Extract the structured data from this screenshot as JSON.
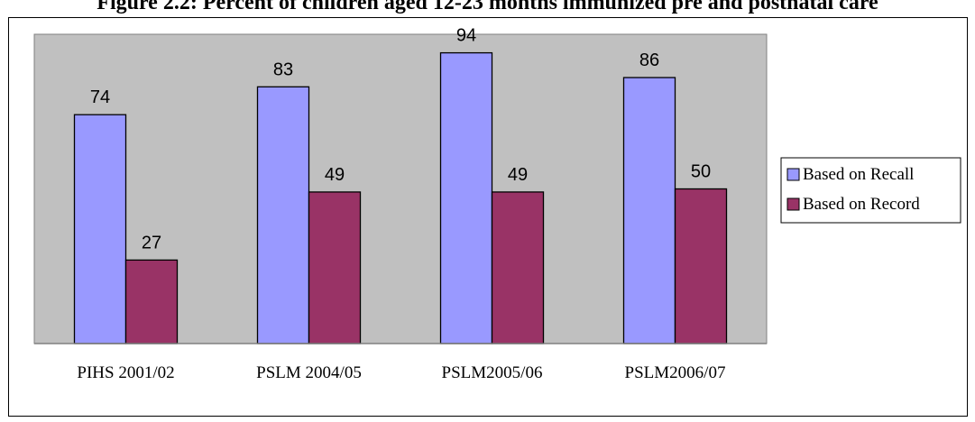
{
  "figure": {
    "title": "Figure 2.2: Percent of children aged 12-23 months immunized pre and postnatal care"
  },
  "chart_data": {
    "type": "bar",
    "title": "Figure 2.2: Percent of children aged 12-23 months immunized pre and postnatal care",
    "xlabel": "",
    "ylabel": "",
    "categories": [
      "PIHS 2001/02",
      "PSLM 2004/05",
      "PSLM2005/06",
      "PSLM2006/07"
    ],
    "series": [
      {
        "name": "Based on Recall",
        "values": [
          74,
          83,
          94,
          86
        ],
        "color": "#9999ff"
      },
      {
        "name": "Based on Record",
        "values": [
          27,
          49,
          49,
          50
        ],
        "color": "#993366"
      }
    ],
    "ylim": [
      0,
      100
    ],
    "grid": false,
    "legend_position": "right",
    "plot_background": "#c0c0c0"
  },
  "colors": {
    "plot_background": "#c0c0c0",
    "axis": "#808080",
    "text": "#000000"
  }
}
